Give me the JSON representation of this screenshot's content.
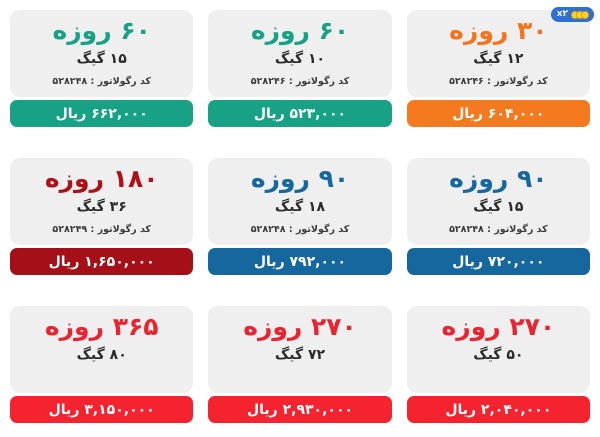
{
  "badge": {
    "label": "x۲",
    "coin_count": 3,
    "bg_color": "#2f6ed3",
    "coin_color": "#ffd02e",
    "coin_border_color": "#d8a70e"
  },
  "colors": {
    "card_body_bg": "#efefef",
    "teal": "#18a285",
    "orange_title": "#f4731c",
    "orange_bar": "#f5791e",
    "blue": "#16679e",
    "dark_red_title": "#ae1016",
    "dark_red_bar": "#a50f17",
    "bright_red_title": "#e92430",
    "bright_red_bar": "#f5222f",
    "price_text": "#ffffff"
  },
  "cards": [
    {
      "title": "۳۰ روزه",
      "gig": "۱۲ گیگ",
      "code": "کد رگولاتور : ۵۲۸۲۴۶",
      "price": "۶۰۴,۰۰۰ ریال",
      "accent_color": "#f4731c",
      "bar_color": "#f5791e"
    },
    {
      "title": "۶۰ روزه",
      "gig": "۱۰ گیگ",
      "code": "کد رگولاتور : ۵۲۸۲۴۶",
      "price": "۵۲۳,۰۰۰ ریال",
      "accent_color": "#18a285",
      "bar_color": "#18a285"
    },
    {
      "title": "۶۰ روزه",
      "gig": "۱۵ گیگ",
      "code": "کد رگولاتور : ۵۲۸۲۴۸",
      "price": "۶۶۲,۰۰۰ ریال",
      "accent_color": "#18a285",
      "bar_color": "#18a285"
    },
    {
      "title": "۹۰ روزه",
      "gig": "۱۵ گیگ",
      "code": "کد رگولاتور : ۵۲۸۲۴۸",
      "price": "۷۲۰,۰۰۰ ریال",
      "accent_color": "#16679e",
      "bar_color": "#16679e"
    },
    {
      "title": "۹۰ روزه",
      "gig": "۱۸ گیگ",
      "code": "کد رگولاتور : ۵۲۸۲۴۸",
      "price": "۷۹۲,۰۰۰ ریال",
      "accent_color": "#16679e",
      "bar_color": "#16679e"
    },
    {
      "title": "۱۸۰ روزه",
      "gig": "۳۶ گیگ",
      "code": "کد رگولاتور : ۵۲۸۲۴۹",
      "price": "۱,۶۵۰,۰۰۰ ریال",
      "accent_color": "#ae1016",
      "bar_color": "#a50f17"
    },
    {
      "title": "۲۷۰ روزه",
      "gig": "۵۰ گیگ",
      "code": null,
      "price": "۲,۰۴۰,۰۰۰ ریال",
      "accent_color": "#e92430",
      "bar_color": "#f5222f"
    },
    {
      "title": "۲۷۰ روزه",
      "gig": "۷۲ گیگ",
      "code": null,
      "price": "۲,۹۳۰,۰۰۰ ریال",
      "accent_color": "#e92430",
      "bar_color": "#f5222f"
    },
    {
      "title": "۳۶۵ روزه",
      "gig": "۸۰ گیگ",
      "code": null,
      "price": "۳,۱۵۰,۰۰۰ ریال",
      "accent_color": "#e92430",
      "bar_color": "#f5222f"
    }
  ]
}
